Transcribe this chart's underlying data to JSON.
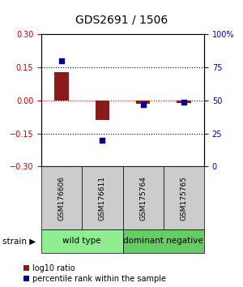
{
  "title": "GDS2691 / 1506",
  "samples": [
    "GSM176606",
    "GSM176611",
    "GSM175764",
    "GSM175765"
  ],
  "log10_ratio": [
    0.13,
    -0.09,
    -0.015,
    -0.01
  ],
  "percentile_rank": [
    80,
    20,
    47,
    49
  ],
  "groups": [
    {
      "label": "wild type",
      "samples": [
        0,
        1
      ],
      "color": "#90ee90"
    },
    {
      "label": "dominant negative",
      "samples": [
        2,
        3
      ],
      "color": "#66cc66"
    }
  ],
  "group_label_prefix": "strain",
  "ylim_left": [
    -0.3,
    0.3
  ],
  "ylim_right": [
    0,
    100
  ],
  "yticks_left": [
    -0.3,
    -0.15,
    0,
    0.15,
    0.3
  ],
  "yticks_right": [
    0,
    25,
    50,
    75,
    100
  ],
  "ytick_labels_right": [
    "0",
    "25",
    "50",
    "75",
    "100%"
  ],
  "hlines_dotted": [
    -0.15,
    0.15
  ],
  "hline_zero_color": "#cc0000",
  "hline_dotted_color": "#000000",
  "bar_color": "#8b1a1a",
  "square_color": "#00008b",
  "bar_width": 0.35,
  "square_size": 25,
  "left_tick_color": "#cc0000",
  "right_tick_color": "#0000cc",
  "sample_box_color": "#cccccc",
  "background_color": "#ffffff",
  "title_fontsize": 10,
  "legend_fontsize": 7,
  "tick_fontsize": 7,
  "sample_fontsize": 6.5,
  "group_fontsize": 7.5,
  "strain_fontsize": 7.5
}
